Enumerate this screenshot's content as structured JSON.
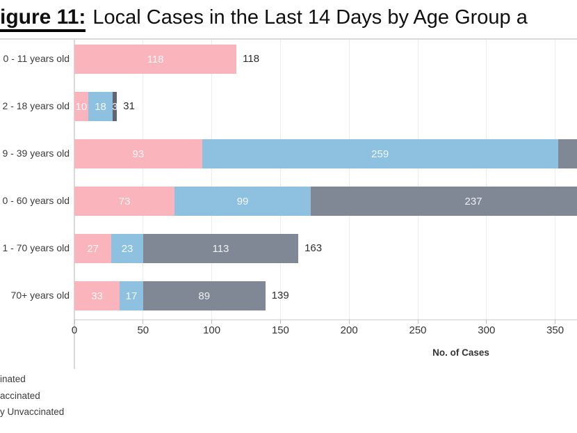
{
  "title": {
    "prefix": "igure 11:",
    "rest": "Local Cases in the Last 14 Days by Age Group a"
  },
  "colors": {
    "pink": "#f9b4bc",
    "blue": "#8ec0e0",
    "gray": "#7f8894",
    "gray_dark": "#5f6672",
    "gridline": "#ececec",
    "panel_line": "#d9d9d9",
    "bar_value_label": "rgba(255,255,255,0.88)",
    "total_label": "#2d2d2d"
  },
  "axis": {
    "ticks": [
      0,
      50,
      100,
      150,
      200,
      250,
      300,
      350
    ],
    "label": "No. of Cases"
  },
  "legend": {
    "items": [
      {
        "label": "inated"
      },
      {
        "label": "accinated"
      },
      {
        "label": "y Unvaccinated"
      }
    ]
  },
  "rows": [
    {
      "category": "0 - 11 years old",
      "segments": [
        {
          "value": 118,
          "color": "pink",
          "label": "118"
        }
      ],
      "total": "118"
    },
    {
      "category": "2 - 18 years old",
      "segments": [
        {
          "value": 10,
          "color": "pink",
          "label": "10"
        },
        {
          "value": 18,
          "color": "blue",
          "label": "18"
        },
        {
          "value": 3,
          "color": "gray_dark",
          "label": "3"
        }
      ],
      "total": "31"
    },
    {
      "category": "9 - 39 years old",
      "segments": [
        {
          "value": 93,
          "color": "pink",
          "label": "93"
        },
        {
          "value": 259,
          "color": "blue",
          "label": "259"
        },
        {
          "value": null,
          "color": "gray",
          "label": null
        }
      ],
      "total": null
    },
    {
      "category": "0 - 60 years old",
      "segments": [
        {
          "value": 73,
          "color": "pink",
          "label": "73"
        },
        {
          "value": 99,
          "color": "blue",
          "label": "99"
        },
        {
          "value": 237,
          "color": "gray",
          "label": "237"
        }
      ],
      "total": null
    },
    {
      "category": "1 - 70 years old",
      "segments": [
        {
          "value": 27,
          "color": "pink",
          "label": "27"
        },
        {
          "value": 23,
          "color": "blue",
          "label": "23"
        },
        {
          "value": 113,
          "color": "gray",
          "label": "113"
        }
      ],
      "total": "163"
    },
    {
      "category": "70+ years old",
      "segments": [
        {
          "value": 33,
          "color": "pink",
          "label": "33"
        },
        {
          "value": 17,
          "color": "blue",
          "label": "17"
        },
        {
          "value": 89,
          "color": "gray",
          "label": "89"
        }
      ],
      "total": "139"
    }
  ],
  "chart_data": {
    "type": "bar",
    "orientation": "horizontal",
    "stacked": true,
    "title": "igure 11: Local Cases in the Last 14 Days by Age Group a",
    "xlabel": "No. of Cases",
    "xlim": [
      0,
      366
    ],
    "x_ticks": [
      0,
      50,
      100,
      150,
      200,
      250,
      300,
      350
    ],
    "grid": true,
    "legend_position": "bottom-left",
    "legend_labels_visible": [
      "inated",
      "accinated",
      "y Unvaccinated"
    ],
    "categories": [
      "0 - 11 years old",
      "2 - 18 years old",
      "9 - 39 years old",
      "0 - 60 years old",
      "1 - 70 years old",
      "70+ years old"
    ],
    "series": [
      {
        "name": "pink-series",
        "color": "#f9b4bc",
        "values": [
          118,
          10,
          93,
          73,
          27,
          33
        ]
      },
      {
        "name": "blue-series",
        "color": "#8ec0e0",
        "values": [
          0,
          18,
          259,
          99,
          23,
          17
        ]
      },
      {
        "name": "gray-series",
        "color": "#7f8894",
        "values": [
          0,
          3,
          null,
          237,
          113,
          89
        ]
      }
    ],
    "totals_visible": [
      "118",
      "31",
      null,
      null,
      "163",
      "139"
    ],
    "bars_clipped_at_right_edge": [
      false,
      false,
      true,
      true,
      false,
      false
    ]
  }
}
